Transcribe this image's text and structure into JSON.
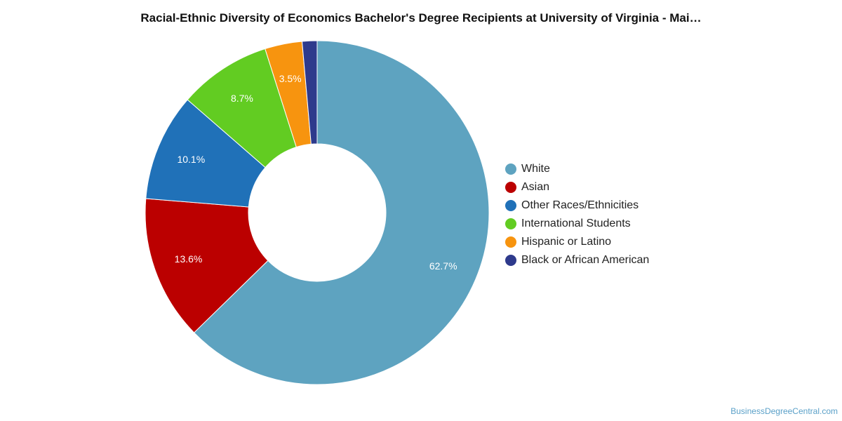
{
  "chart_data": {
    "type": "pie",
    "donut": true,
    "title": "Racial-Ethnic Diversity of Economics Bachelor's Degree Recipients at University of Virginia - Mai…",
    "slices": [
      {
        "name": "White",
        "value": 62.7,
        "label": "62.7%",
        "color": "#5ea3c0"
      },
      {
        "name": "Asian",
        "value": 13.6,
        "label": "13.6%",
        "color": "#bb0000"
      },
      {
        "name": "Other Races/Ethnicities",
        "value": 10.1,
        "label": "10.1%",
        "color": "#2071b8"
      },
      {
        "name": "International Students",
        "value": 8.7,
        "label": "8.7%",
        "color": "#62cc22"
      },
      {
        "name": "Hispanic or Latino",
        "value": 3.5,
        "label": "3.5%",
        "color": "#f7940f"
      },
      {
        "name": "Black or African American",
        "value": 1.4,
        "label": "",
        "color": "#2e3a8c"
      }
    ],
    "legend_position": "right"
  },
  "credit": "BusinessDegreeCentral.com"
}
